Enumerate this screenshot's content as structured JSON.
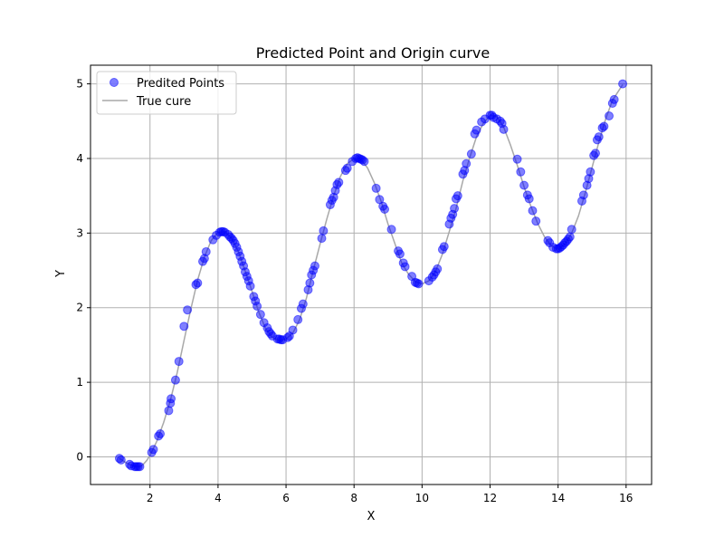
{
  "chart_data": {
    "type": "scatter",
    "title": "Predicted Point and Origin curve",
    "xlabel": "X",
    "ylabel": "Y",
    "xlim": [
      0.25,
      16.75
    ],
    "ylim": [
      -0.37,
      5.25
    ],
    "xticks": [
      2,
      4,
      6,
      8,
      10,
      12,
      14,
      16
    ],
    "yticks": [
      0,
      1,
      2,
      3,
      4,
      5
    ],
    "grid": true,
    "legend_position": "top-left",
    "curve_color": "#a8a8a8",
    "point_color": "#0000ff",
    "series": [
      {
        "name": "Predited Points",
        "kind": "scatter",
        "x": [
          1.1,
          1.15,
          1.4,
          1.45,
          1.55,
          1.6,
          1.65,
          1.7,
          2.05,
          2.1,
          2.25,
          2.3,
          2.55,
          2.6,
          2.62,
          2.75,
          2.85,
          3.0,
          3.1,
          3.35,
          3.4,
          3.55,
          3.6,
          3.65,
          3.85,
          3.95,
          4.05,
          4.1,
          4.15,
          4.2,
          4.3,
          4.35,
          4.4,
          4.45,
          4.5,
          4.55,
          4.6,
          4.65,
          4.7,
          4.75,
          4.8,
          4.85,
          4.9,
          4.95,
          5.05,
          5.1,
          5.15,
          5.25,
          5.35,
          5.45,
          5.5,
          5.55,
          5.6,
          5.75,
          5.8,
          5.85,
          5.9,
          6.05,
          6.1,
          6.2,
          6.35,
          6.45,
          6.5,
          6.65,
          6.7,
          6.75,
          6.8,
          6.85,
          7.05,
          7.1,
          7.3,
          7.35,
          7.4,
          7.45,
          7.5,
          7.55,
          7.75,
          7.8,
          7.95,
          8.05,
          8.1,
          8.15,
          8.2,
          8.25,
          8.3,
          8.65,
          8.75,
          8.85,
          8.9,
          9.1,
          9.3,
          9.35,
          9.45,
          9.5,
          9.7,
          9.8,
          9.85,
          9.9,
          10.2,
          10.3,
          10.35,
          10.4,
          10.45,
          10.6,
          10.65,
          10.8,
          10.85,
          10.9,
          10.95,
          11.0,
          11.05,
          11.2,
          11.25,
          11.3,
          11.45,
          11.55,
          11.6,
          11.75,
          11.85,
          12.0,
          12.05,
          12.1,
          12.2,
          12.3,
          12.35,
          12.4,
          12.8,
          12.9,
          13.0,
          13.1,
          13.15,
          13.25,
          13.35,
          13.7,
          13.75,
          13.85,
          13.95,
          14.0,
          14.05,
          14.1,
          14.15,
          14.2,
          14.25,
          14.3,
          14.35,
          14.4,
          14.7,
          14.75,
          14.85,
          14.9,
          14.95,
          15.05,
          15.1,
          15.15,
          15.2,
          15.3,
          15.35,
          15.5,
          15.6,
          15.65,
          15.9
        ],
        "y": [
          -0.02,
          -0.04,
          -0.1,
          -0.12,
          -0.13,
          -0.13,
          -0.13,
          -0.13,
          0.06,
          0.1,
          0.28,
          0.31,
          0.62,
          0.72,
          0.78,
          1.03,
          1.28,
          1.75,
          1.97,
          2.31,
          2.33,
          2.62,
          2.66,
          2.75,
          2.91,
          2.97,
          3.01,
          3.02,
          3.02,
          3.01,
          2.98,
          2.95,
          2.93,
          2.9,
          2.86,
          2.81,
          2.75,
          2.69,
          2.62,
          2.56,
          2.48,
          2.42,
          2.36,
          2.29,
          2.15,
          2.09,
          2.02,
          1.91,
          1.8,
          1.73,
          1.68,
          1.65,
          1.62,
          1.58,
          1.58,
          1.57,
          1.57,
          1.6,
          1.62,
          1.7,
          1.84,
          1.99,
          2.05,
          2.24,
          2.33,
          2.44,
          2.5,
          2.56,
          2.93,
          3.03,
          3.38,
          3.44,
          3.48,
          3.57,
          3.65,
          3.68,
          3.84,
          3.87,
          3.96,
          4.0,
          4.01,
          4.0,
          3.99,
          3.98,
          3.96,
          3.6,
          3.45,
          3.36,
          3.32,
          3.05,
          2.76,
          2.72,
          2.6,
          2.55,
          2.42,
          2.34,
          2.33,
          2.32,
          2.36,
          2.41,
          2.44,
          2.48,
          2.52,
          2.78,
          2.82,
          3.12,
          3.2,
          3.25,
          3.33,
          3.46,
          3.5,
          3.79,
          3.84,
          3.93,
          4.06,
          4.33,
          4.38,
          4.49,
          4.53,
          4.58,
          4.58,
          4.55,
          4.53,
          4.5,
          4.47,
          4.39,
          3.99,
          3.82,
          3.64,
          3.51,
          3.46,
          3.3,
          3.16,
          2.9,
          2.87,
          2.81,
          2.79,
          2.79,
          2.8,
          2.82,
          2.84,
          2.87,
          2.89,
          2.92,
          2.95,
          3.05,
          3.43,
          3.51,
          3.64,
          3.73,
          3.82,
          4.04,
          4.07,
          4.25,
          4.29,
          4.41,
          4.43,
          4.57,
          4.74,
          4.79,
          5.0
        ]
      },
      {
        "name": "True cure",
        "kind": "line",
        "x": [
          1.1,
          1.2,
          1.3,
          1.4,
          1.5,
          1.6,
          1.7,
          1.8,
          1.9,
          2.0,
          2.2,
          2.4,
          2.6,
          2.8,
          3.0,
          3.2,
          3.4,
          3.6,
          3.8,
          4.0,
          4.2,
          4.4,
          4.6,
          4.8,
          5.0,
          5.2,
          5.4,
          5.6,
          5.8,
          6.0,
          6.2,
          6.4,
          6.6,
          6.8,
          7.0,
          7.2,
          7.4,
          7.6,
          7.8,
          8.0,
          8.2,
          8.4,
          8.6,
          8.8,
          9.0,
          9.2,
          9.4,
          9.6,
          9.8,
          10.0,
          10.2,
          10.4,
          10.6,
          10.8,
          11.0,
          11.2,
          11.4,
          11.6,
          11.8,
          12.0,
          12.2,
          12.4,
          12.6,
          12.8,
          13.0,
          13.2,
          13.4,
          13.6,
          13.8,
          14.0,
          14.2,
          14.4,
          14.6,
          14.8,
          15.0,
          15.2,
          15.4,
          15.6,
          15.8,
          15.9
        ],
        "y": [
          -0.02,
          -0.05,
          -0.08,
          -0.1,
          -0.12,
          -0.13,
          -0.13,
          -0.1,
          -0.05,
          0.02,
          0.21,
          0.46,
          0.76,
          1.13,
          1.56,
          1.98,
          2.37,
          2.68,
          2.9,
          3.01,
          3.02,
          2.93,
          2.75,
          2.49,
          2.22,
          1.94,
          1.72,
          1.6,
          1.56,
          1.58,
          1.66,
          1.84,
          2.13,
          2.5,
          2.85,
          3.19,
          3.5,
          3.76,
          3.93,
          4.0,
          3.99,
          3.87,
          3.67,
          3.42,
          3.12,
          2.86,
          2.6,
          2.45,
          2.35,
          2.32,
          2.36,
          2.49,
          2.72,
          3.02,
          3.33,
          3.7,
          4.01,
          4.29,
          4.47,
          4.58,
          4.56,
          4.42,
          4.18,
          3.91,
          3.62,
          3.36,
          3.13,
          2.95,
          2.83,
          2.78,
          2.85,
          3.0,
          3.23,
          3.54,
          3.88,
          4.22,
          4.53,
          4.78,
          4.92,
          4.99
        ]
      }
    ]
  }
}
